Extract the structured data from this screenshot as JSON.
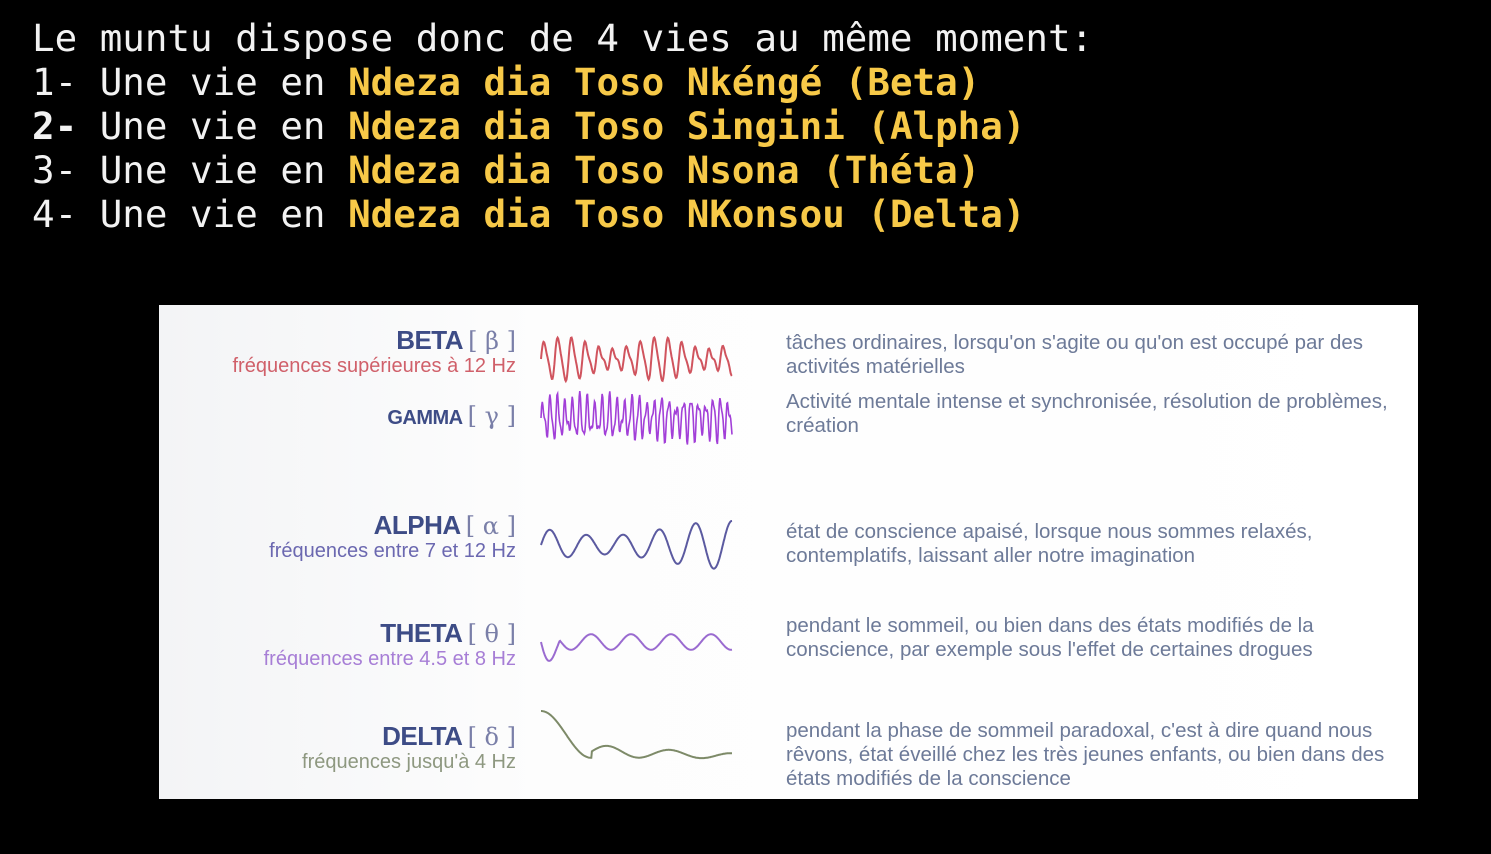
{
  "intro": "Le muntu dispose donc de 4 vies au même moment:",
  "lives": [
    {
      "num": "1-",
      "prefix": " Une vie en ",
      "name": "Ndeza dia Toso Nkéngé (Beta)"
    },
    {
      "num": "2-",
      "prefix": " Une vie en ",
      "name": "Ndeza dia Toso Singini (Alpha)"
    },
    {
      "num": "3-",
      "prefix": " Une vie en ",
      "name": "Ndeza dia Toso Nsona (Théta)"
    },
    {
      "num": "4-",
      "prefix": " Une vie en ",
      "name": "Ndeza dia Toso NKonsou (Delta)"
    }
  ],
  "colors": {
    "highlight": "#f7c948",
    "beta": "#d0545e",
    "gamma": "#a23fd8",
    "alpha": "#5b5aa0",
    "theta": "#9a6bd0",
    "delta": "#7d8a68"
  },
  "waves": [
    {
      "name": "BETA",
      "symbol": "[ β ]",
      "freq": "fréquences supérieures à 12 Hz",
      "freq_color": "#d0606a",
      "wave_color": "#d0545e",
      "desc": "tâches ordinaires, lorsqu'on s'agite ou qu'on est occupé par des activités matérielles"
    },
    {
      "name": "GAMMA",
      "symbol": "[ γ ]",
      "freq": "",
      "wave_color": "#a23fd8",
      "desc": "Activité mentale intense et synchronisée, résolution de problèmes, création"
    },
    {
      "name": "ALPHA",
      "symbol": "[ α ]",
      "freq": "fréquences entre 7 et 12 Hz",
      "freq_color": "#6b68b0",
      "wave_color": "#5b5aa0",
      "desc": "état de conscience apaisé, lorsque nous sommes relaxés, contemplatifs, laissant aller notre imagination"
    },
    {
      "name": "THETA",
      "symbol": "[ θ ]",
      "freq": "fréquences entre 4.5 et 8 Hz",
      "freq_color": "#a77ed6",
      "wave_color": "#9a6bd0",
      "desc": "pendant le sommeil, ou bien dans des états modifiés de la conscience, par exemple sous l'effet de certaines drogues"
    },
    {
      "name": "DELTA",
      "symbol": "[ δ ]",
      "freq": "fréquences jusqu'à 4 Hz",
      "freq_color": "#8e9880",
      "wave_color": "#7d8a68",
      "desc": "pendant la phase  de sommeil paradoxal, c'est à dire quand nous rêvons, état éveillé chez les très jeunes enfants, ou bien dans des états modifiés de la conscience"
    }
  ]
}
